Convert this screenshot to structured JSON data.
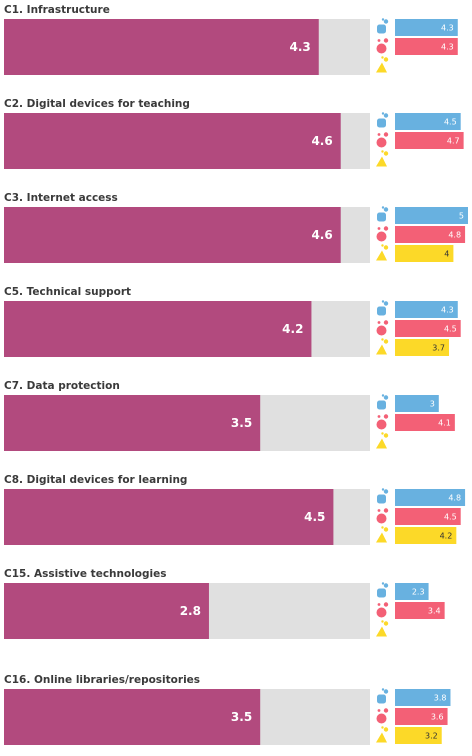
{
  "chart_data": {
    "type": "bar",
    "orientation": "horizontal",
    "xlim": [
      0,
      5
    ],
    "grid": false,
    "legend": "none",
    "colors": {
      "main": "#b24a7e",
      "track": "#e0e0e0",
      "group_1": "#68b1e0",
      "group_2": "#f36076",
      "group_3": "#fcd928"
    },
    "group_icons": [
      "blue-person-icon",
      "red-person-icon",
      "yellow-person-icon"
    ],
    "categories": [
      {
        "label": "C1. Infrastructure",
        "value": 4.3,
        "breakdown": [
          4.3,
          4.3,
          null
        ]
      },
      {
        "label": "C2. Digital devices for teaching",
        "value": 4.6,
        "breakdown": [
          4.5,
          4.7,
          null
        ]
      },
      {
        "label": "C3. Internet access",
        "value": 4.6,
        "breakdown": [
          5,
          4.8,
          4
        ]
      },
      {
        "label": "C5. Technical support",
        "value": 4.2,
        "breakdown": [
          4.3,
          4.5,
          3.7
        ]
      },
      {
        "label": "C7. Data protection",
        "value": 3.5,
        "breakdown": [
          3,
          4.1,
          null
        ]
      },
      {
        "label": "C8. Digital devices for learning",
        "value": 4.5,
        "breakdown": [
          4.8,
          4.5,
          4.2
        ]
      },
      {
        "label": "C15. Assistive technologies",
        "value": 2.8,
        "breakdown": [
          2.3,
          3.4,
          null
        ]
      },
      {
        "label": "C16. Online libraries/repositories",
        "value": 3.5,
        "breakdown": [
          3.8,
          3.6,
          3.2
        ]
      }
    ]
  }
}
